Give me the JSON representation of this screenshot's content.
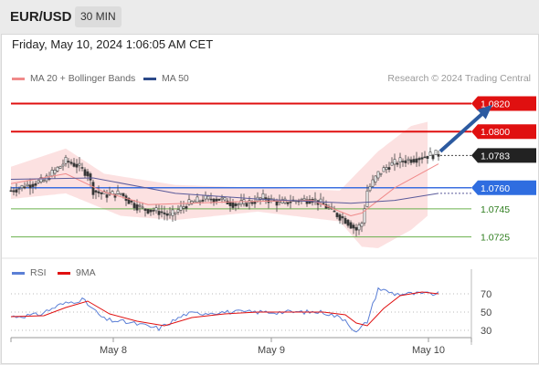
{
  "header": {
    "pair": "EUR/USD",
    "timeframe": "30 MIN"
  },
  "datetime": "Friday, May 10, 2024 1:06:05 AM CET",
  "credit": "Research © 2024 Trading Central",
  "legend": {
    "ma20": {
      "label": "MA 20 + Bollinger Bands",
      "color": "#f08a8a"
    },
    "ma50": {
      "label": "MA 50",
      "color": "#2c4a8a"
    },
    "rsi": {
      "label": "RSI",
      "color": "#5b7fd6"
    },
    "ma9": {
      "label": "9MA",
      "color": "#e01010"
    }
  },
  "chart_data": [
    {
      "type": "candlestick",
      "ylim": [
        1.0715,
        1.0832
      ],
      "last_price": 1.0783,
      "x_ticks": [
        "May 8",
        "May 9",
        "May 10"
      ],
      "levels": [
        {
          "value": 1.082,
          "label": "1.0820",
          "kind": "resistance"
        },
        {
          "value": 1.08,
          "label": "1.0800",
          "kind": "resistance"
        },
        {
          "value": 1.076,
          "label": "1.0760",
          "kind": "pivot"
        },
        {
          "value": 1.0745,
          "label": "1.0745",
          "kind": "support"
        },
        {
          "value": 1.0725,
          "label": "1.0725",
          "kind": "support"
        }
      ],
      "price_path": [
        [
          0,
          1.0758
        ],
        [
          6,
          1.0762
        ],
        [
          12,
          1.0765
        ],
        [
          16,
          1.0772
        ],
        [
          20,
          1.0779
        ],
        [
          24,
          1.0776
        ],
        [
          28,
          1.077
        ],
        [
          30,
          1.0758
        ],
        [
          34,
          1.0755
        ],
        [
          40,
          1.0756
        ],
        [
          44,
          1.0749
        ],
        [
          48,
          1.0745
        ],
        [
          54,
          1.0743
        ],
        [
          58,
          1.074
        ],
        [
          64,
          1.0748
        ],
        [
          70,
          1.0752
        ],
        [
          76,
          1.0752
        ],
        [
          82,
          1.0748
        ],
        [
          88,
          1.075
        ],
        [
          92,
          1.0753
        ],
        [
          98,
          1.0749
        ],
        [
          104,
          1.0751
        ],
        [
          110,
          1.0752
        ],
        [
          114,
          1.0748
        ],
        [
          118,
          1.0742
        ],
        [
          122,
          1.0737
        ],
        [
          126,
          1.073
        ],
        [
          128,
          1.0735
        ],
        [
          130,
          1.0758
        ],
        [
          134,
          1.077
        ],
        [
          138,
          1.0776
        ],
        [
          142,
          1.0779
        ],
        [
          148,
          1.0781
        ],
        [
          152,
          1.0783
        ],
        [
          156,
          1.0784
        ]
      ],
      "ma20": [
        [
          0,
          1.0763
        ],
        [
          20,
          1.077
        ],
        [
          34,
          1.0757
        ],
        [
          50,
          1.0748
        ],
        [
          80,
          1.075
        ],
        [
          110,
          1.0751
        ],
        [
          124,
          1.074
        ],
        [
          128,
          1.0742
        ],
        [
          140,
          1.076
        ],
        [
          156,
          1.0777
        ]
      ],
      "ma50": [
        [
          0,
          1.0766
        ],
        [
          30,
          1.0767
        ],
        [
          60,
          1.0756
        ],
        [
          90,
          1.0752
        ],
        [
          124,
          1.0749
        ],
        [
          140,
          1.0751
        ],
        [
          156,
          1.0756
        ]
      ],
      "bb_upper": [
        [
          0,
          1.0775
        ],
        [
          20,
          1.0788
        ],
        [
          34,
          1.077
        ],
        [
          60,
          1.0762
        ],
        [
          90,
          1.076
        ],
        [
          120,
          1.0758
        ],
        [
          134,
          1.0786
        ],
        [
          146,
          1.0804
        ],
        [
          152,
          1.0807
        ]
      ],
      "bb_lower": [
        [
          0,
          1.0752
        ],
        [
          20,
          1.0756
        ],
        [
          40,
          1.074
        ],
        [
          60,
          1.0737
        ],
        [
          90,
          1.0743
        ],
        [
          120,
          1.0736
        ],
        [
          128,
          1.0718
        ],
        [
          134,
          1.0717
        ],
        [
          146,
          1.073
        ],
        [
          152,
          1.074
        ]
      ],
      "forecast": {
        "from": [
          156,
          1.0784
        ],
        "to": [
          176,
          1.082
        ]
      }
    },
    {
      "type": "line",
      "series": [
        {
          "name": "RSI",
          "values": [
            [
              0,
              45
            ],
            [
              10,
              47
            ],
            [
              18,
              58
            ],
            [
              26,
              64
            ],
            [
              34,
              42
            ],
            [
              44,
              38
            ],
            [
              54,
              32
            ],
            [
              64,
              48
            ],
            [
              76,
              50
            ],
            [
              90,
              50
            ],
            [
              104,
              50
            ],
            [
              114,
              50
            ],
            [
              122,
              42
            ],
            [
              126,
              27
            ],
            [
              130,
              40
            ],
            [
              134,
              76
            ],
            [
              140,
              70
            ],
            [
              148,
              70
            ],
            [
              156,
              70
            ]
          ]
        },
        {
          "name": "9MA",
          "values": [
            [
              0,
              45
            ],
            [
              12,
              46
            ],
            [
              20,
              55
            ],
            [
              28,
              62
            ],
            [
              36,
              48
            ],
            [
              46,
              40
            ],
            [
              56,
              35
            ],
            [
              66,
              44
            ],
            [
              78,
              48
            ],
            [
              90,
              50
            ],
            [
              104,
              50
            ],
            [
              114,
              50
            ],
            [
              122,
              47
            ],
            [
              126,
              38
            ],
            [
              130,
              35
            ],
            [
              136,
              54
            ],
            [
              142,
              68
            ],
            [
              150,
              72
            ],
            [
              156,
              70
            ]
          ]
        }
      ],
      "ylim": [
        20,
        80
      ],
      "y_ticks": [
        "70",
        "50",
        "30"
      ]
    }
  ]
}
